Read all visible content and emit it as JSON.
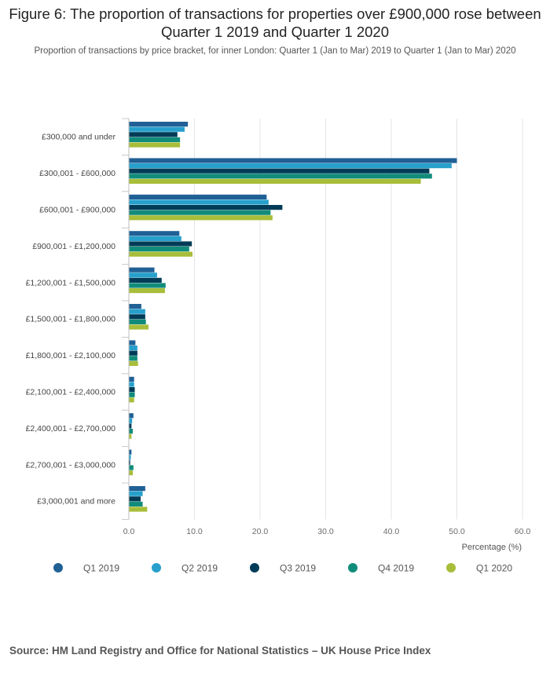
{
  "chart_data": {
    "type": "bar",
    "orientation": "horizontal",
    "title": "Figure 6: The proportion of transactions for properties over £900,000 rose between Quarter 1 2019 and Quarter 1 2020",
    "subtitle": "Proportion of transactions by price bracket, for inner London: Quarter 1 (Jan to Mar) 2019 to Quarter 1 (Jan to Mar) 2020",
    "xlabel": "Percentage (%)",
    "ylabel": "",
    "xlim": [
      0,
      60
    ],
    "ticks": [
      "0.0",
      "10.0",
      "20.0",
      "30.0",
      "40.0",
      "50.0",
      "60.0"
    ],
    "tick_values": [
      0,
      10,
      20,
      30,
      40,
      50,
      60
    ],
    "categories": [
      "£300,000 and under",
      "£300,001 - £600,000",
      "£600,001 - £900,000",
      "£900,001 - £1,200,000",
      "£1,200,001 - £1,500,000",
      "£1,500,001 - £1,800,000",
      "£1,800,001 - £2,100,000",
      "£2,100,001 - £2,400,000",
      "£2,400,001 - £2,700,000",
      "£2,700,001 - £3,000,000",
      "£3,000,001 and more"
    ],
    "series": [
      {
        "name": "Q1 2019",
        "color": "#206095",
        "values": [
          9.0,
          50.0,
          21.0,
          7.7,
          3.9,
          1.9,
          1.0,
          0.8,
          0.7,
          0.4,
          2.5
        ]
      },
      {
        "name": "Q2 2019",
        "color": "#27a0cc",
        "values": [
          8.5,
          49.2,
          21.3,
          8.0,
          4.3,
          2.5,
          1.3,
          0.8,
          0.5,
          0.3,
          2.1
        ]
      },
      {
        "name": "Q3 2019",
        "color": "#003c57",
        "values": [
          7.4,
          45.8,
          23.4,
          9.6,
          5.0,
          2.5,
          1.3,
          0.9,
          0.4,
          0.2,
          1.8
        ]
      },
      {
        "name": "Q4 2019",
        "color": "#118c7b",
        "values": [
          7.8,
          46.2,
          21.6,
          9.2,
          5.6,
          2.6,
          1.3,
          0.9,
          0.6,
          0.7,
          2.1
        ]
      },
      {
        "name": "Q1 2020",
        "color": "#a8bd3a",
        "values": [
          7.8,
          44.5,
          21.9,
          9.7,
          5.5,
          3.0,
          1.4,
          0.8,
          0.4,
          0.6,
          2.8
        ]
      }
    ],
    "legend_position": "bottom",
    "grid": true
  },
  "source": "Source: HM Land Registry and Office for National Statistics – UK House Price Index"
}
